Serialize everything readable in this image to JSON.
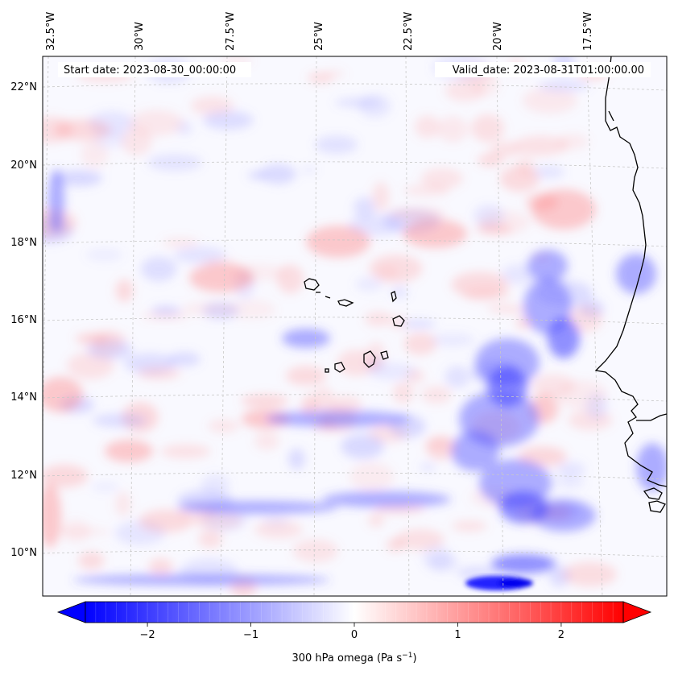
{
  "map": {
    "start_date": "Start date: 2023-08-30_00:00:00",
    "valid_date": "Valid_date: 2023-08-31T01:00:00.00",
    "lon_labels": [
      "32.5°W",
      "30°W",
      "27.5°W",
      "25°W",
      "22.5°W",
      "20°W",
      "17.5°W"
    ],
    "lat_labels": [
      "22°N",
      "20°N",
      "18°N",
      "16°N",
      "14°N",
      "12°N",
      "10°N"
    ],
    "field": "300 hPa omega",
    "gridlines": true
  },
  "colorbar": {
    "title_text": "300 hPa omega (Pa s",
    "title_sup": "−1",
    "title_close": ")",
    "ticks": [
      "−2",
      "−1",
      "0",
      "1",
      "2"
    ],
    "tick_values": [
      -2,
      -1,
      0,
      1,
      2
    ],
    "range": [
      -2.6,
      2.6
    ],
    "extend": "both",
    "colormap": "bwr",
    "low_color": "#0000ff",
    "mid_color": "#ffffff",
    "high_color": "#ff0000"
  },
  "colors": {
    "coastline": "#000000",
    "gridline": "#c8c8c8"
  }
}
